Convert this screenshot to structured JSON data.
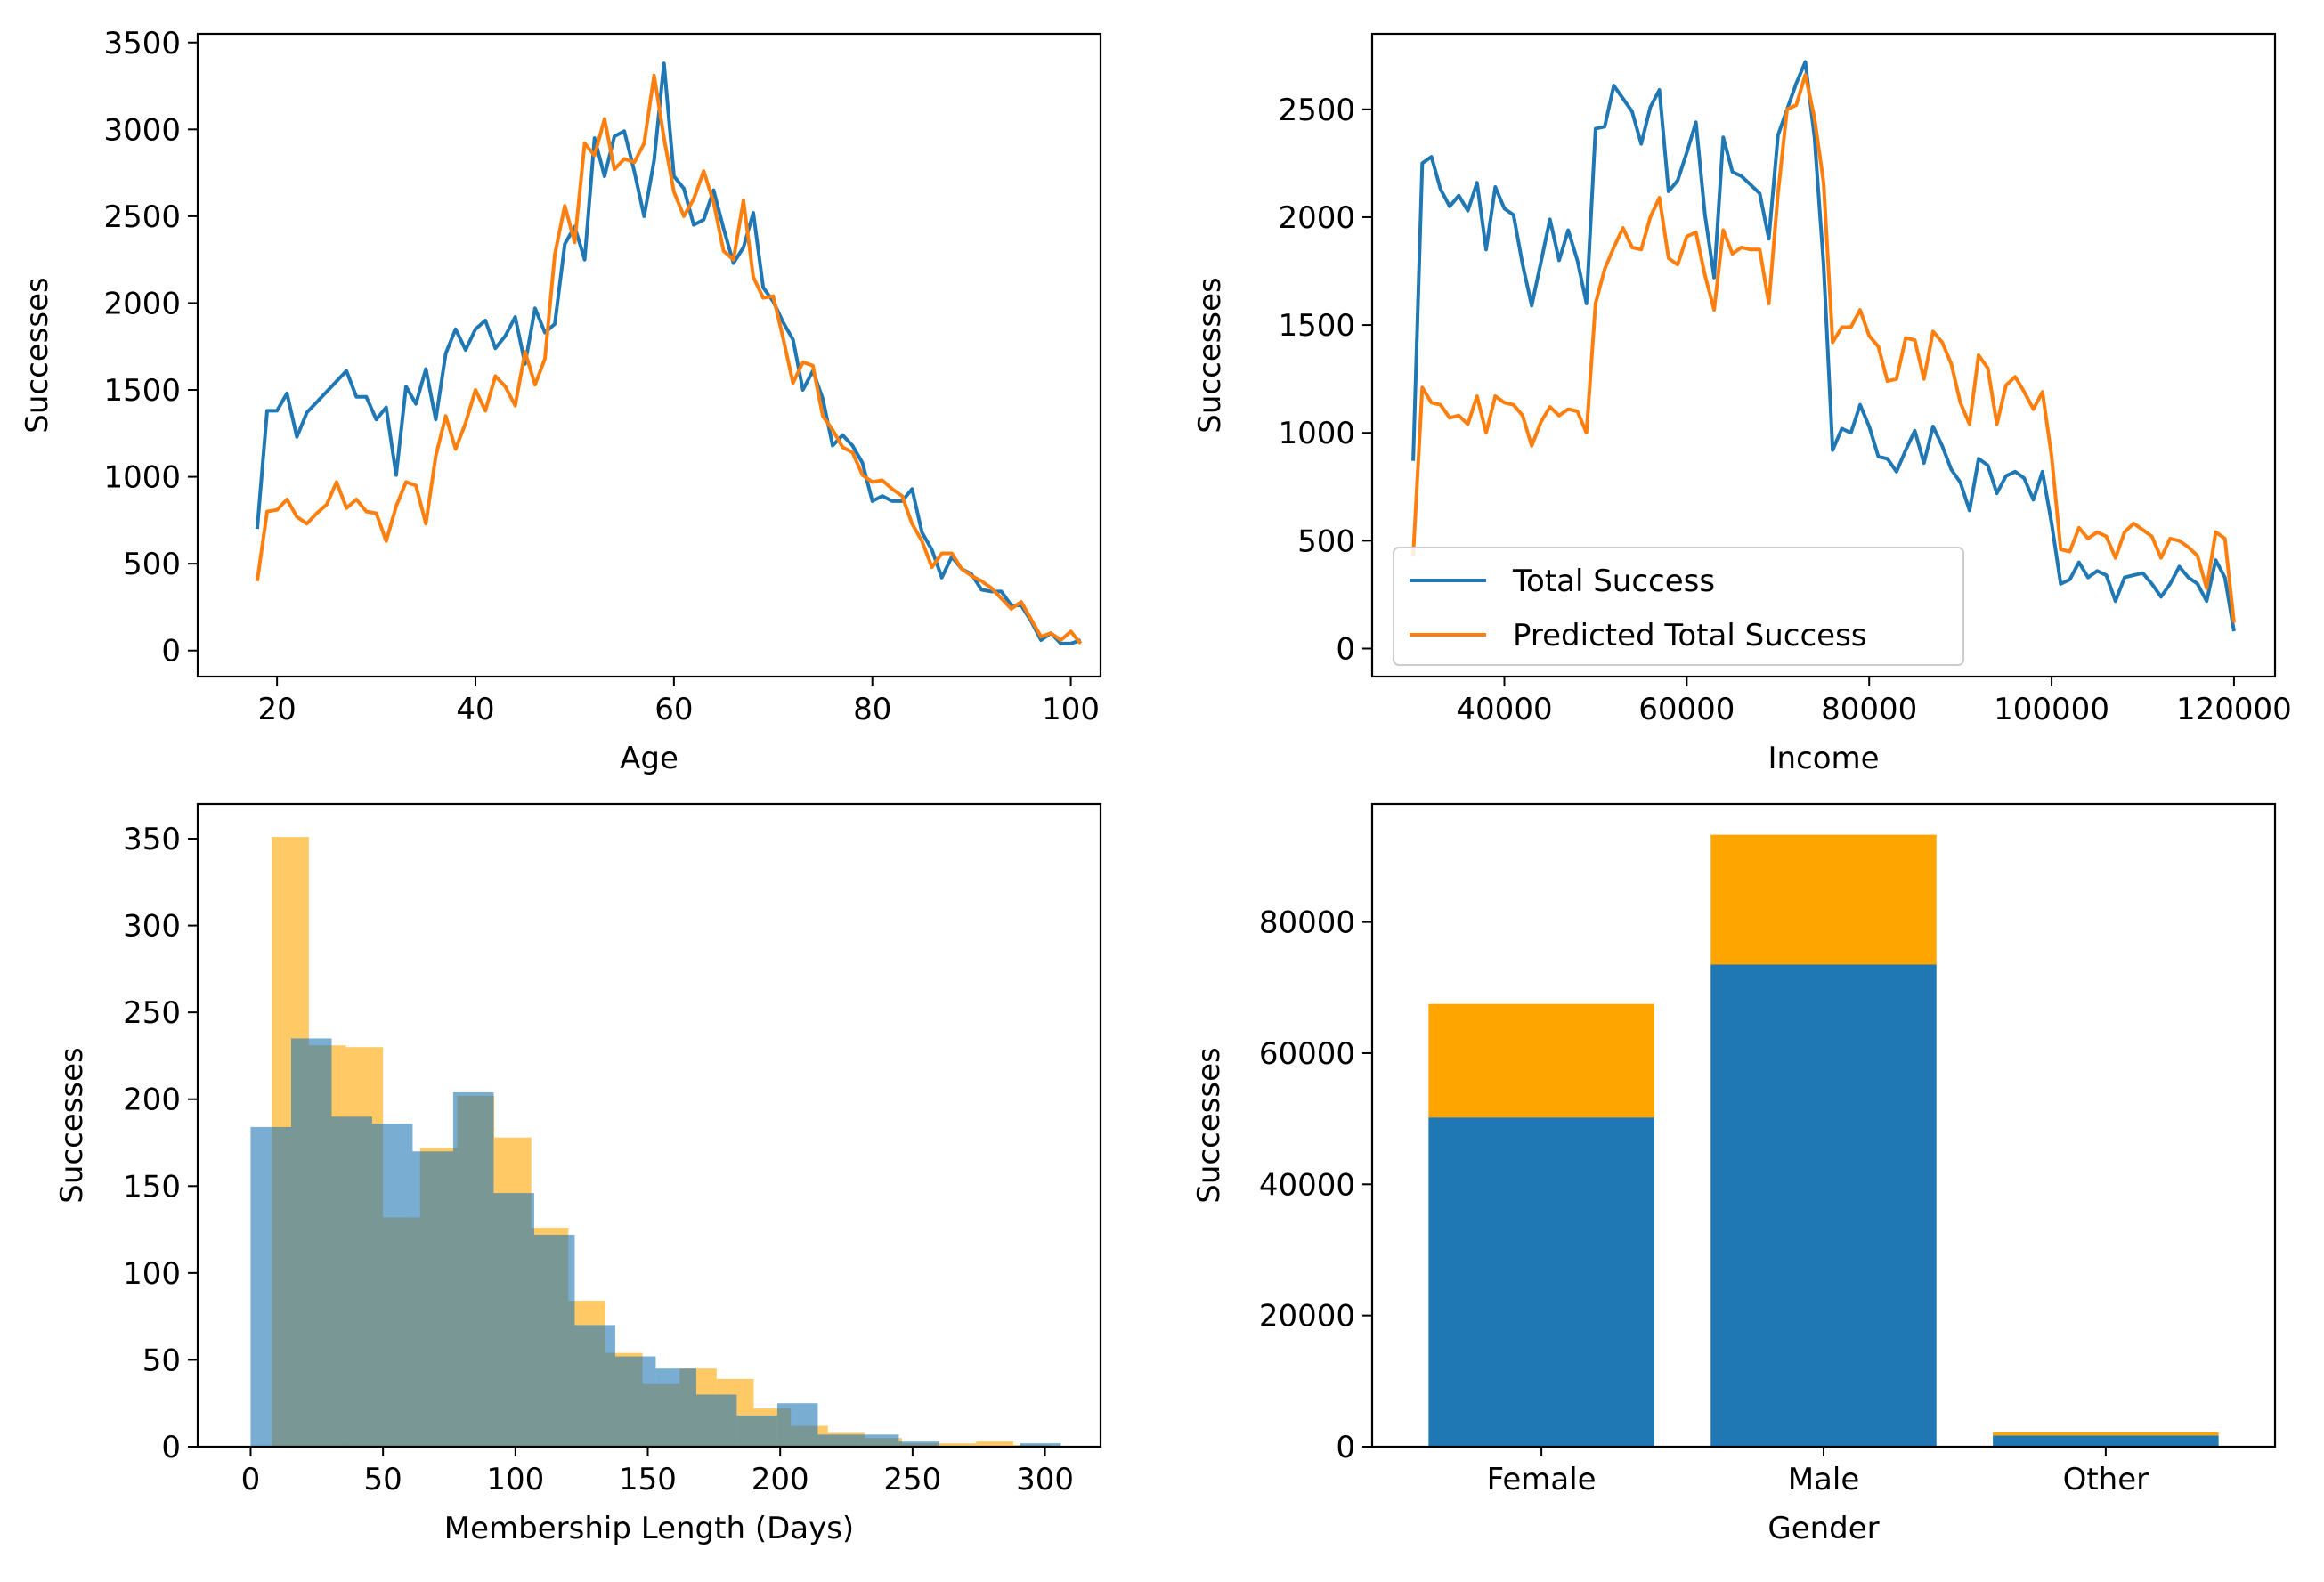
{
  "figure": {
    "colors": {
      "blue": "#1f77b4",
      "orange": "#ff7f0e",
      "orange_hist": "#ffa500",
      "hist_alpha": 0.6,
      "bar_orange": "#ffa500"
    }
  },
  "chart_data": [
    {
      "type": "line",
      "xlabel": "Age",
      "ylabel": "Successes",
      "xlim": [
        12,
        103
      ],
      "ylim": [
        -150,
        3550
      ],
      "xticks": [
        20,
        40,
        60,
        80,
        100
      ],
      "yticks": [
        0,
        500,
        1000,
        1500,
        2000,
        2500,
        3000,
        3500
      ],
      "series": [
        {
          "name": "Total Success",
          "color": "#1f77b4",
          "x": [
            18,
            19,
            20,
            21,
            22,
            23,
            24,
            25,
            26,
            27,
            28,
            29,
            30,
            31,
            32,
            33,
            34,
            35,
            36,
            37,
            38,
            39,
            40,
            41,
            42,
            43,
            44,
            45,
            46,
            47,
            48,
            49,
            50,
            51,
            52,
            53,
            54,
            55,
            56,
            57,
            58,
            59,
            60,
            61,
            62,
            63,
            64,
            65,
            66,
            67,
            68,
            69,
            70,
            71,
            72,
            73,
            74,
            75,
            76,
            77,
            78,
            79,
            80,
            81,
            82,
            83,
            84,
            85,
            86,
            87,
            88,
            89,
            90,
            91,
            92,
            93,
            94,
            95,
            96,
            97,
            98,
            99,
            100,
            101
          ],
          "y": [
            700,
            1380,
            1380,
            1480,
            1230,
            1370,
            1430,
            1490,
            1550,
            1610,
            1460,
            1460,
            1330,
            1400,
            1010,
            1520,
            1420,
            1620,
            1330,
            1710,
            1850,
            1730,
            1850,
            1900,
            1740,
            1810,
            1920,
            1650,
            1970,
            1830,
            1880,
            2340,
            2440,
            2250,
            2950,
            2730,
            2960,
            2990,
            2760,
            2500,
            2820,
            3380,
            2730,
            2660,
            2450,
            2480,
            2650,
            2430,
            2230,
            2320,
            2520,
            2090,
            2010,
            1890,
            1790,
            1500,
            1610,
            1450,
            1180,
            1240,
            1180,
            1080,
            860,
            890,
            860,
            860,
            930,
            680,
            580,
            420,
            540,
            470,
            440,
            350,
            340,
            340,
            260,
            260,
            170,
            60,
            100,
            40,
            40,
            60
          ]
        },
        {
          "name": "Predicted Total Success",
          "color": "#ff7f0e",
          "x": [
            18,
            19,
            20,
            21,
            22,
            23,
            24,
            25,
            26,
            27,
            28,
            29,
            30,
            31,
            32,
            33,
            34,
            35,
            36,
            37,
            38,
            39,
            40,
            41,
            42,
            43,
            44,
            45,
            46,
            47,
            48,
            49,
            50,
            51,
            52,
            53,
            54,
            55,
            56,
            57,
            58,
            59,
            60,
            61,
            62,
            63,
            64,
            65,
            66,
            67,
            68,
            69,
            70,
            71,
            72,
            73,
            74,
            75,
            76,
            77,
            78,
            79,
            80,
            81,
            82,
            83,
            84,
            85,
            86,
            87,
            88,
            89,
            90,
            91,
            92,
            93,
            94,
            95,
            96,
            97,
            98,
            99,
            100,
            101
          ],
          "y": [
            400,
            800,
            810,
            870,
            770,
            730,
            790,
            840,
            970,
            820,
            870,
            800,
            790,
            630,
            830,
            970,
            950,
            730,
            1120,
            1350,
            1160,
            1310,
            1500,
            1380,
            1580,
            1520,
            1410,
            1720,
            1530,
            1680,
            2280,
            2560,
            2350,
            2920,
            2850,
            3060,
            2770,
            2830,
            2810,
            2920,
            3310,
            2950,
            2640,
            2500,
            2600,
            2760,
            2580,
            2300,
            2250,
            2590,
            2150,
            2030,
            2040,
            1800,
            1540,
            1660,
            1640,
            1350,
            1270,
            1170,
            1140,
            1010,
            970,
            980,
            930,
            890,
            730,
            630,
            480,
            560,
            560,
            470,
            430,
            400,
            360,
            300,
            240,
            280,
            180,
            80,
            100,
            60,
            110,
            40
          ]
        }
      ]
    },
    {
      "type": "line",
      "xlabel": "Income",
      "ylabel": "Successes",
      "xlim": [
        25500,
        124500
      ],
      "ylim": [
        -130,
        2850
      ],
      "xticks": [
        40000,
        60000,
        80000,
        100000,
        120000
      ],
      "yticks": [
        0,
        500,
        1000,
        1500,
        2000,
        2500
      ],
      "legend": {
        "position": "lower-left",
        "entries": [
          "Total Success",
          "Predicted Total Success"
        ]
      },
      "series": [
        {
          "name": "Total Success",
          "color": "#1f77b4",
          "x": [
            30000,
            31000,
            32000,
            33000,
            34000,
            35000,
            36000,
            37000,
            38000,
            39000,
            40000,
            41000,
            42000,
            43000,
            44000,
            45000,
            46000,
            47000,
            48000,
            49000,
            50000,
            51000,
            52000,
            53000,
            54000,
            55000,
            56000,
            57000,
            58000,
            59000,
            60000,
            61000,
            62000,
            63000,
            64000,
            65000,
            66000,
            67000,
            68000,
            69000,
            70000,
            71000,
            72000,
            73000,
            74000,
            75000,
            76000,
            77000,
            78000,
            79000,
            80000,
            81000,
            82000,
            83000,
            84000,
            85000,
            86000,
            87000,
            88000,
            89000,
            90000,
            91000,
            92000,
            93000,
            94000,
            95000,
            96000,
            97000,
            98000,
            99000,
            100000,
            101000,
            102000,
            103000,
            104000,
            105000,
            106000,
            107000,
            108000,
            109000,
            110000,
            111000,
            112000,
            113000,
            114000,
            115000,
            116000,
            117000,
            118000,
            119000,
            120000
          ],
          "y": [
            870,
            2250,
            2280,
            2130,
            2050,
            2100,
            2030,
            2160,
            1850,
            2140,
            2040,
            2010,
            1780,
            1590,
            1790,
            1990,
            1800,
            1940,
            1800,
            1600,
            2410,
            2420,
            2610,
            2550,
            2490,
            2340,
            2510,
            2590,
            2120,
            2170,
            2300,
            2440,
            2010,
            1720,
            2370,
            2210,
            2190,
            2150,
            2110,
            1900,
            2380,
            2500,
            2620,
            2720,
            2370,
            1780,
            920,
            1020,
            1000,
            1130,
            1030,
            890,
            880,
            820,
            920,
            1010,
            860,
            1030,
            940,
            830,
            770,
            640,
            880,
            850,
            720,
            800,
            820,
            790,
            690,
            820,
            580,
            300,
            320,
            400,
            330,
            360,
            340,
            220,
            330,
            340,
            350,
            300,
            240,
            300,
            380,
            330,
            300,
            220,
            410,
            330,
            80
          ]
        },
        {
          "name": "Predicted Total Success",
          "color": "#ff7f0e",
          "x": [
            30000,
            31000,
            32000,
            33000,
            34000,
            35000,
            36000,
            37000,
            38000,
            39000,
            40000,
            41000,
            42000,
            43000,
            44000,
            45000,
            46000,
            47000,
            48000,
            49000,
            50000,
            51000,
            52000,
            53000,
            54000,
            55000,
            56000,
            57000,
            58000,
            59000,
            60000,
            61000,
            62000,
            63000,
            64000,
            65000,
            66000,
            67000,
            68000,
            69000,
            70000,
            71000,
            72000,
            73000,
            74000,
            75000,
            76000,
            77000,
            78000,
            79000,
            80000,
            81000,
            82000,
            83000,
            84000,
            85000,
            86000,
            87000,
            88000,
            89000,
            90000,
            91000,
            92000,
            93000,
            94000,
            95000,
            96000,
            97000,
            98000,
            99000,
            100000,
            101000,
            102000,
            103000,
            104000,
            105000,
            106000,
            107000,
            108000,
            109000,
            110000,
            111000,
            112000,
            113000,
            114000,
            115000,
            116000,
            117000,
            118000,
            119000,
            120000
          ],
          "y": [
            430,
            1210,
            1140,
            1130,
            1070,
            1080,
            1040,
            1170,
            1000,
            1170,
            1140,
            1130,
            1080,
            940,
            1050,
            1120,
            1080,
            1110,
            1100,
            1000,
            1600,
            1760,
            1860,
            1950,
            1860,
            1850,
            2000,
            2090,
            1810,
            1780,
            1910,
            1930,
            1730,
            1570,
            1940,
            1830,
            1860,
            1850,
            1850,
            1600,
            2110,
            2500,
            2520,
            2660,
            2460,
            2160,
            1420,
            1490,
            1490,
            1570,
            1450,
            1400,
            1240,
            1250,
            1440,
            1430,
            1250,
            1470,
            1420,
            1320,
            1140,
            1040,
            1360,
            1300,
            1040,
            1220,
            1260,
            1190,
            1110,
            1190,
            890,
            460,
            450,
            560,
            510,
            540,
            520,
            420,
            540,
            580,
            550,
            520,
            420,
            510,
            500,
            470,
            430,
            280,
            540,
            510,
            120
          ]
        }
      ]
    },
    {
      "type": "bar",
      "subtype": "histogram-overlay",
      "xlabel": "Membership Length (Days)",
      "ylabel": "Successes",
      "xlim": [
        -20,
        321
      ],
      "ylim": [
        0,
        370
      ],
      "xticks": [
        0,
        50,
        100,
        150,
        200,
        250,
        300
      ],
      "yticks": [
        0,
        50,
        100,
        150,
        200,
        250,
        300,
        350
      ],
      "series": [
        {
          "color": "#ffa500",
          "alpha": 0.6,
          "bins": [
            [
              8,
              22
            ],
            [
              22,
              36
            ],
            [
              36,
              50
            ],
            [
              50,
              64
            ],
            [
              64,
              78
            ],
            [
              78,
              92
            ],
            [
              92,
              106
            ],
            [
              106,
              120
            ],
            [
              120,
              134
            ],
            [
              134,
              148
            ],
            [
              148,
              162
            ],
            [
              162,
              176
            ],
            [
              176,
              190
            ],
            [
              190,
              204
            ],
            [
              204,
              218
            ],
            [
              218,
              232
            ],
            [
              232,
              246
            ],
            [
              246,
              260
            ],
            [
              260,
              274
            ],
            [
              274,
              288
            ],
            [
              288,
              302
            ]
          ],
          "values": [
            351,
            231,
            230,
            132,
            172,
            202,
            178,
            126,
            84,
            54,
            36,
            45,
            39,
            22,
            12,
            8,
            5,
            2,
            2,
            3,
            1
          ]
        },
        {
          "color": "#1f77b4",
          "alpha": 0.6,
          "bins": [
            [
              0,
              15.3
            ],
            [
              15.3,
              30.6
            ],
            [
              30.6,
              45.9
            ],
            [
              45.9,
              61.2
            ],
            [
              61.2,
              76.5
            ],
            [
              76.5,
              91.8
            ],
            [
              91.8,
              107.1
            ],
            [
              107.1,
              122.4
            ],
            [
              122.4,
              137.7
            ],
            [
              137.7,
              153
            ],
            [
              153,
              168.3
            ],
            [
              168.3,
              183.6
            ],
            [
              183.6,
              198.9
            ],
            [
              198.9,
              214.2
            ],
            [
              214.2,
              229.5
            ],
            [
              229.5,
              244.8
            ],
            [
              244.8,
              260.1
            ],
            [
              260.1,
              275.4
            ],
            [
              275.4,
              290.7
            ],
            [
              290.7,
              306
            ]
          ],
          "values": [
            184,
            235,
            190,
            186,
            170,
            204,
            146,
            122,
            70,
            52,
            45,
            30,
            18,
            25,
            7,
            7,
            3,
            0,
            0,
            2
          ]
        }
      ]
    },
    {
      "type": "bar",
      "subtype": "stacked",
      "xlabel": "Gender",
      "ylabel": "Successes",
      "ylim": [
        0,
        98000
      ],
      "yticks": [
        0,
        20000,
        40000,
        60000,
        80000
      ],
      "categories": [
        "Female",
        "Male",
        "Other"
      ],
      "series": [
        {
          "color": "#1f77b4",
          "values": [
            50200,
            73500,
            1700
          ]
        },
        {
          "color": "#ffa500",
          "values": [
            17300,
            19800,
            500
          ]
        }
      ]
    }
  ]
}
